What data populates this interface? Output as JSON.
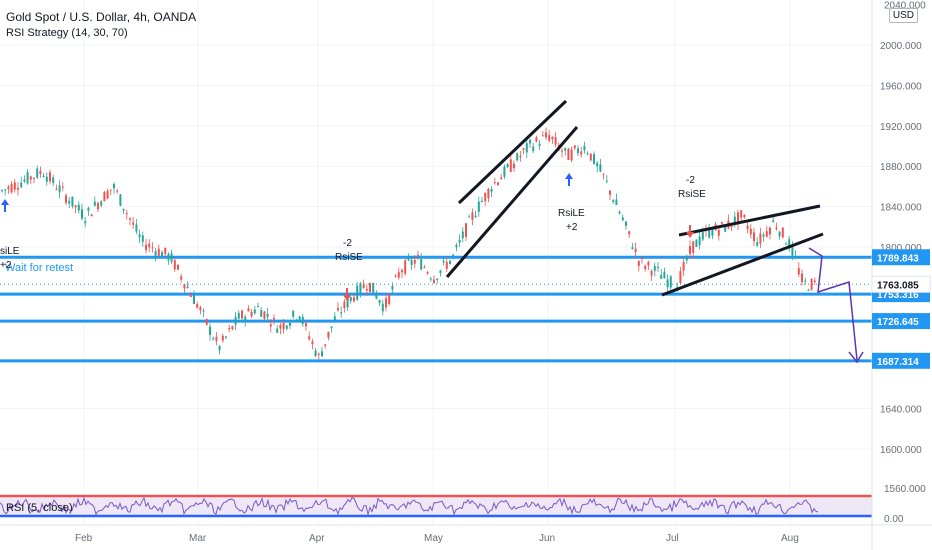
{
  "header": {
    "title": "Gold Spot / U.S. Dollar, 4h, OANDA",
    "strategy": "RSI Strategy (14, 30, 70)",
    "currency": "USD"
  },
  "rsi_panel": {
    "label": "RSI (5, close)",
    "tick_upper": "1560.000",
    "tick_lower": "0.00"
  },
  "note": "Wait for retest",
  "chart_data": {
    "type": "candlestick",
    "title": "Gold Spot / U.S. Dollar, 4h, OANDA",
    "ylim": [
      1556,
      2040
    ],
    "y_ticks": [
      "2000.000",
      "1960.000",
      "1920.000",
      "1880.000",
      "1840.000",
      "1800.000",
      "1640.000",
      "1600.000"
    ],
    "top_partial_tick": "2040.000",
    "x_ticks": [
      "Feb",
      "Mar",
      "Apr",
      "May",
      "Jun",
      "Jul",
      "Aug"
    ],
    "path": [
      [
        "Jan",
        1855
      ],
      [
        "Jan",
        1875
      ],
      [
        "Feb",
        1830
      ],
      [
        "Feb",
        1860
      ],
      [
        "Feb",
        1805
      ],
      [
        "Feb",
        1790
      ],
      [
        "Mar",
        1740
      ],
      [
        "Mar",
        1700
      ],
      [
        "Mar",
        1730
      ],
      [
        "Mar",
        1740
      ],
      [
        "Mar",
        1720
      ],
      [
        "Mar",
        1735
      ],
      [
        "Apr",
        1690
      ],
      [
        "Apr",
        1730
      ],
      [
        "Apr",
        1750
      ],
      [
        "Apr",
        1765
      ],
      [
        "Apr",
        1740
      ],
      [
        "Apr",
        1778
      ],
      [
        "Apr",
        1788
      ],
      [
        "May",
        1770
      ],
      [
        "May",
        1790
      ],
      [
        "May",
        1830
      ],
      [
        "May",
        1860
      ],
      [
        "May",
        1880
      ],
      [
        "May",
        1900
      ],
      [
        "Jun",
        1910
      ],
      [
        "Jun",
        1890
      ],
      [
        "Jun",
        1900
      ],
      [
        "Jun",
        1870
      ],
      [
        "Jun",
        1830
      ],
      [
        "Jun",
        1785
      ],
      [
        "Jun",
        1775
      ],
      [
        "Jul",
        1760
      ],
      [
        "Jul",
        1800
      ],
      [
        "Jul",
        1815
      ],
      [
        "Jul",
        1820
      ],
      [
        "Jul",
        1830
      ],
      [
        "Jul",
        1805
      ],
      [
        "Jul",
        1825
      ],
      [
        "Aug",
        1800
      ],
      [
        "Aug",
        1763
      ]
    ],
    "horizontal_levels": [
      {
        "value": 1789.843,
        "label": "1789.843",
        "color": "#2196f3"
      },
      {
        "value": 1753.316,
        "label": "1753.316",
        "color": "#2196f3"
      },
      {
        "value": 1726.645,
        "label": "1726.645",
        "color": "#2196f3"
      },
      {
        "value": 1687.314,
        "label": "1687.314",
        "color": "#2196f3"
      }
    ],
    "current_price": {
      "value": 1763.085,
      "label": "1763.085",
      "color": "#26a69a"
    },
    "signals": [
      {
        "type": "RsiLE",
        "qty": "+2",
        "text": "siLE",
        "qty_text": "+2",
        "direction": "long"
      },
      {
        "type": "RsiSE",
        "qty": "-2",
        "text": "RsiSE",
        "qty_text": "-2",
        "direction": "short"
      },
      {
        "type": "RsiLE",
        "qty": "+2",
        "text": "RsiLE",
        "qty_text": "+2",
        "direction": "long"
      },
      {
        "type": "RsiSE",
        "qty": "-2",
        "text": "RsiSE",
        "qty_text": "-2",
        "direction": "short"
      }
    ],
    "rsi": {
      "upper_color": "#ef5350",
      "lower_color": "#2962ff",
      "line_color": "#7e57c2"
    },
    "colors": {
      "up": "#26a69a",
      "down": "#ef5350",
      "trendline": "#131722",
      "projection": "#5e35b1"
    },
    "grid": true
  }
}
